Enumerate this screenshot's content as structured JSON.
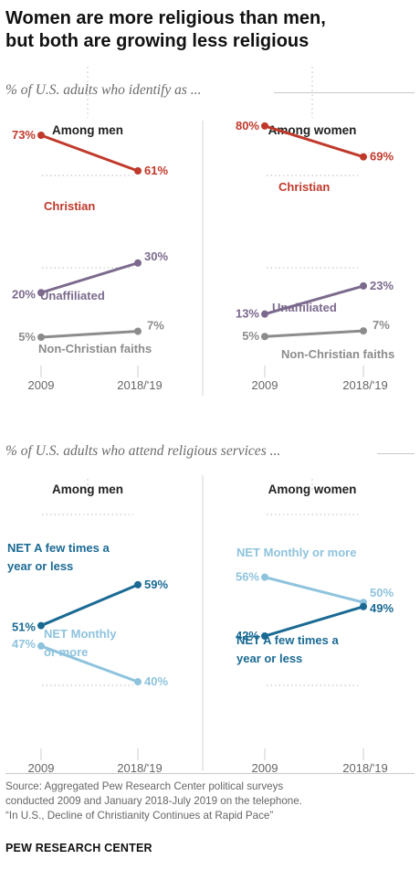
{
  "title_lines": [
    "Women are more religious than men,",
    "but both are growing less religious"
  ],
  "source_lines": [
    "Source: Aggregated Pew Research Center political surveys",
    "conducted 2009 and January 2018-July 2019 on the telephone.",
    "“In U.S., Decline of Christianity Continues at Rapid Pace”"
  ],
  "brand": "PEW RESEARCH CENTER",
  "colors": {
    "christian": "#c0392b",
    "unaffiliated": "#7b6a8d",
    "non_christian": "#8c8c8c",
    "net_few_times": "#1a6a94",
    "net_monthly": "#8ec3dd"
  },
  "chart_data": [
    {
      "type": "line",
      "subtitle": "% of U.S. adults who identify as ...",
      "panel": "Among men",
      "x": [
        "2009",
        "2018/'19"
      ],
      "series": [
        {
          "name": "Christian",
          "values": [
            73,
            61
          ],
          "labels": [
            "73%",
            "61%"
          ]
        },
        {
          "name": "Unaffiliated",
          "values": [
            20,
            30
          ],
          "labels": [
            "20%",
            "30%"
          ]
        },
        {
          "name": "Non-Christian faiths",
          "values": [
            5,
            7
          ],
          "labels": [
            "5%",
            "7%"
          ]
        }
      ]
    },
    {
      "type": "line",
      "subtitle": "% of U.S. adults who identify as ...",
      "panel": "Among women",
      "x": [
        "2009",
        "2018/'19"
      ],
      "series": [
        {
          "name": "Christian",
          "values": [
            80,
            69
          ],
          "labels": [
            "80%",
            "69%"
          ]
        },
        {
          "name": "Unaffiliated",
          "values": [
            13,
            23
          ],
          "labels": [
            "13%",
            "23%"
          ]
        },
        {
          "name": "Non-Christian faiths",
          "values": [
            5,
            7
          ],
          "labels": [
            "5%",
            "7%"
          ]
        }
      ]
    },
    {
      "type": "line",
      "subtitle": "% of U.S. adults who attend religious services ...",
      "panel": "Among men",
      "x": [
        "2009",
        "2018/'19"
      ],
      "series": [
        {
          "name": "NET A few times a year or less",
          "values": [
            51,
            59
          ],
          "labels": [
            "51%",
            "59%"
          ]
        },
        {
          "name": "NET Monthly or more",
          "values": [
            47,
            40
          ],
          "labels": [
            "47%",
            "40%"
          ]
        }
      ]
    },
    {
      "type": "line",
      "subtitle": "% of U.S. adults who attend religious services ...",
      "panel": "Among women",
      "x": [
        "2009",
        "2018/'19"
      ],
      "series": [
        {
          "name": "NET Monthly or more",
          "values": [
            56,
            50
          ],
          "labels": [
            "56%",
            "50%"
          ]
        },
        {
          "name": "NET A few times a year or less",
          "values": [
            42,
            49
          ],
          "labels": [
            "42%",
            "49%"
          ]
        }
      ]
    }
  ]
}
